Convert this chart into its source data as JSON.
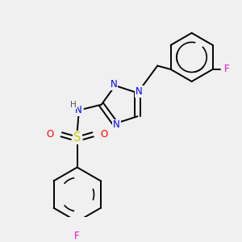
{
  "bg_color": "#f0f0f0",
  "atom_colors": {
    "N": "#0000ff",
    "H": "#555555",
    "S": "#cccc00",
    "O": "#ff0000",
    "F_upper": "#ff00cc",
    "F_lower": "#ff00cc",
    "C": "#000000"
  },
  "font_size_atom": 8.5,
  "line_color": "#000000",
  "line_width": 1.4
}
